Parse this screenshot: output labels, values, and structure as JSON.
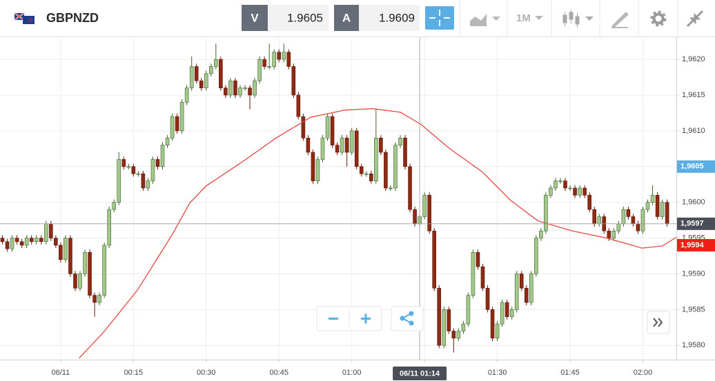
{
  "toolbar": {
    "symbol": "GBPNZD",
    "bid_label": "V",
    "bid": 1.9605,
    "ask_label": "A",
    "ask": 1.9609,
    "interval": "1M"
  },
  "chart_data": {
    "type": "candlestick",
    "up_color": "#a3c98a",
    "down_color": "#8e2a14",
    "x": [
      -12,
      -11,
      -10,
      -9,
      -8,
      -7,
      -6,
      -5,
      -4,
      -3,
      -2,
      -1,
      0,
      1,
      2,
      3,
      4,
      5,
      6,
      7,
      8,
      9,
      10,
      11,
      12,
      13,
      14,
      15,
      16,
      17,
      18,
      19,
      20,
      21,
      22,
      23,
      24,
      25,
      26,
      27,
      28,
      29,
      30,
      31,
      32,
      33,
      34,
      35,
      36,
      37,
      38,
      39,
      40,
      41,
      42,
      43,
      44,
      45,
      46,
      47,
      48,
      49,
      50,
      51,
      52,
      53,
      54,
      55,
      56,
      57,
      58,
      59,
      60,
      61,
      62,
      63,
      64,
      65,
      66,
      67,
      68,
      69,
      70,
      71,
      72,
      73,
      74,
      75,
      76,
      77,
      78,
      79,
      80,
      81,
      82,
      83,
      84,
      85,
      86,
      87,
      88,
      89,
      90,
      91,
      92,
      93,
      94,
      95,
      96,
      97,
      98,
      99,
      100,
      101,
      102,
      103,
      104,
      105,
      106,
      107,
      108,
      109,
      110,
      111,
      112,
      113,
      114,
      115,
      116,
      117,
      118,
      119,
      120,
      121,
      122,
      123,
      124,
      125
    ],
    "open": [
      1.9595,
      1.95945,
      1.95935,
      1.9595,
      1.95945,
      1.9594,
      1.9595,
      1.95945,
      1.9595,
      1.95945,
      1.9597,
      1.9595,
      1.9594,
      1.9592,
      1.9595,
      1.959,
      1.9588,
      1.959,
      1.9593,
      1.9587,
      1.9586,
      1.9587,
      1.9594,
      1.9599,
      1.96,
      1.9606,
      1.9605,
      1.9605,
      1.9604,
      1.9604,
      1.9602,
      1.9603,
      1.9606,
      1.9605,
      1.9608,
      1.9609,
      1.9612,
      1.961,
      1.9614,
      1.9616,
      1.9619,
      1.9617,
      1.9616,
      1.9618,
      1.9619,
      1.962,
      1.9616,
      1.9615,
      1.9617,
      1.9615,
      1.9616,
      1.9616,
      1.9615,
      1.9617,
      1.962,
      1.9619,
      1.9619,
      1.9621,
      1.962,
      1.9621,
      1.9619,
      1.9615,
      1.9612,
      1.9609,
      1.9607,
      1.9603,
      1.9606,
      1.9609,
      1.9612,
      1.9608,
      1.9607,
      1.9609,
      1.9607,
      1.961,
      1.9605,
      1.9604,
      1.9604,
      1.9603,
      1.9609,
      1.9607,
      1.9602,
      1.9602,
      1.9608,
      1.9609,
      1.9605,
      1.9599,
      1.9597,
      1.9598,
      1.9601,
      1.9596,
      1.9588,
      1.958,
      1.9585,
      1.9582,
      1.9581,
      1.9582,
      1.9583,
      1.9587,
      1.9593,
      1.9591,
      1.9588,
      1.9585,
      1.9581,
      1.9583,
      1.9586,
      1.9584,
      1.9585,
      1.959,
      1.9588,
      1.9586,
      1.959,
      1.9595,
      1.9596,
      1.9601,
      1.9602,
      1.9603,
      1.9603,
      1.9602,
      1.9602,
      1.9601,
      1.9602,
      1.9601,
      1.9599,
      1.9597,
      1.9598,
      1.9596,
      1.9595,
      1.9596,
      1.9597,
      1.9599,
      1.9598,
      1.9597,
      1.9596,
      1.9599,
      1.96,
      1.9601,
      1.9598,
      1.96
    ],
    "high": [
      1.95954,
      1.95949,
      1.95954,
      1.95954,
      1.95949,
      1.95954,
      1.95954,
      1.95954,
      1.95954,
      1.95974,
      1.95974,
      1.95954,
      1.95944,
      1.95954,
      1.95954,
      1.95904,
      1.95904,
      1.95934,
      1.95934,
      1.95874,
      1.95874,
      1.95944,
      1.95994,
      1.96004,
      1.9607,
      1.96064,
      1.96054,
      1.96054,
      1.96044,
      1.96044,
      1.96034,
      1.96064,
      1.96064,
      1.96084,
      1.96094,
      1.96124,
      1.96124,
      1.96144,
      1.96164,
      1.96204,
      1.96194,
      1.96174,
      1.96184,
      1.96194,
      1.96222,
      1.96204,
      1.96164,
      1.96174,
      1.96174,
      1.96164,
      1.96164,
      1.96164,
      1.96174,
      1.96204,
      1.96204,
      1.96222,
      1.96214,
      1.96214,
      1.96222,
      1.96214,
      1.96194,
      1.96154,
      1.96124,
      1.96094,
      1.96074,
      1.96064,
      1.96094,
      1.96124,
      1.96124,
      1.96084,
      1.96094,
      1.96094,
      1.96104,
      1.96104,
      1.96054,
      1.96044,
      1.96044,
      1.9613,
      1.96094,
      1.96074,
      1.96024,
      1.96084,
      1.96094,
      1.96094,
      1.96054,
      1.95994,
      1.95984,
      1.96014,
      1.96014,
      1.95964,
      1.95884,
      1.95854,
      1.95854,
      1.95824,
      1.95824,
      1.95834,
      1.95874,
      1.95934,
      1.95934,
      1.95914,
      1.95884,
      1.95854,
      1.95834,
      1.95864,
      1.95864,
      1.95854,
      1.95904,
      1.95904,
      1.95884,
      1.95904,
      1.95954,
      1.95964,
      1.96014,
      1.96024,
      1.96034,
      1.96034,
      1.96034,
      1.96024,
      1.96024,
      1.96024,
      1.96024,
      1.96014,
      1.95994,
      1.95984,
      1.95984,
      1.95964,
      1.95964,
      1.95974,
      1.95994,
      1.95994,
      1.95984,
      1.95974,
      1.95994,
      1.96004,
      1.96024,
      1.96014,
      1.96004,
      1.96004
    ],
    "low": [
      1.95941,
      1.95931,
      1.95931,
      1.95941,
      1.95936,
      1.95936,
      1.95941,
      1.95941,
      1.95941,
      1.95941,
      1.95946,
      1.95936,
      1.95916,
      1.95916,
      1.95896,
      1.95876,
      1.95876,
      1.95896,
      1.95866,
      1.9584,
      1.95856,
      1.95866,
      1.95936,
      1.95986,
      1.95996,
      1.96046,
      1.96046,
      1.96036,
      1.96036,
      1.96016,
      1.96016,
      1.96026,
      1.96046,
      1.96046,
      1.96076,
      1.96086,
      1.96096,
      1.96096,
      1.96136,
      1.96156,
      1.96166,
      1.96156,
      1.96156,
      1.96176,
      1.96186,
      1.96156,
      1.96146,
      1.96146,
      1.96146,
      1.96146,
      1.96156,
      1.9613,
      1.96146,
      1.96166,
      1.96186,
      1.96186,
      1.96186,
      1.96196,
      1.96196,
      1.96186,
      1.96146,
      1.96116,
      1.96086,
      1.96066,
      1.96026,
      1.96026,
      1.96056,
      1.96086,
      1.96076,
      1.96066,
      1.96066,
      1.9605,
      1.96066,
      1.96046,
      1.96036,
      1.96036,
      1.96026,
      1.96026,
      1.96066,
      1.96016,
      1.96016,
      1.96016,
      1.96076,
      1.96046,
      1.95986,
      1.95966,
      1.95966,
      1.95976,
      1.95956,
      1.95876,
      1.95796,
      1.95796,
      1.95816,
      1.9579,
      1.95806,
      1.95816,
      1.95826,
      1.95866,
      1.95906,
      1.95876,
      1.95846,
      1.95806,
      1.95806,
      1.95826,
      1.95836,
      1.95836,
      1.95846,
      1.95876,
      1.95856,
      1.95856,
      1.95896,
      1.95946,
      1.95956,
      1.96006,
      1.96016,
      1.96026,
      1.96016,
      1.96016,
      1.96006,
      1.96006,
      1.96006,
      1.95986,
      1.95966,
      1.95966,
      1.95956,
      1.95946,
      1.95946,
      1.95956,
      1.95966,
      1.95976,
      1.95966,
      1.95956,
      1.95956,
      1.95986,
      1.95996,
      1.95976,
      1.95976,
      1.95966
    ],
    "close": [
      1.95945,
      1.95935,
      1.9595,
      1.95945,
      1.9594,
      1.9595,
      1.95945,
      1.9595,
      1.95945,
      1.9597,
      1.9595,
      1.9594,
      1.9592,
      1.9595,
      1.959,
      1.9588,
      1.959,
      1.9593,
      1.9587,
      1.9586,
      1.9587,
      1.9594,
      1.9599,
      1.96,
      1.9606,
      1.9605,
      1.9605,
      1.9604,
      1.9604,
      1.9602,
      1.9603,
      1.9606,
      1.9605,
      1.9608,
      1.9609,
      1.9612,
      1.961,
      1.9614,
      1.9616,
      1.9619,
      1.9617,
      1.9616,
      1.9618,
      1.9619,
      1.962,
      1.9616,
      1.9615,
      1.9617,
      1.9615,
      1.9616,
      1.9616,
      1.9615,
      1.9617,
      1.962,
      1.9619,
      1.9619,
      1.9621,
      1.962,
      1.9621,
      1.9619,
      1.9615,
      1.9612,
      1.9609,
      1.9607,
      1.9603,
      1.9606,
      1.9609,
      1.9612,
      1.9608,
      1.9607,
      1.9609,
      1.9607,
      1.961,
      1.9605,
      1.9604,
      1.9604,
      1.9603,
      1.9609,
      1.9607,
      1.9602,
      1.9602,
      1.9608,
      1.9609,
      1.9605,
      1.9599,
      1.9597,
      1.9598,
      1.9601,
      1.9596,
      1.9588,
      1.958,
      1.9585,
      1.9582,
      1.9581,
      1.9582,
      1.9583,
      1.9587,
      1.9593,
      1.9591,
      1.9588,
      1.9585,
      1.9581,
      1.9583,
      1.9586,
      1.9584,
      1.9585,
      1.959,
      1.9588,
      1.9586,
      1.959,
      1.9595,
      1.9596,
      1.9601,
      1.9602,
      1.9603,
      1.9603,
      1.9602,
      1.9602,
      1.9601,
      1.9602,
      1.9601,
      1.9599,
      1.9597,
      1.9598,
      1.9596,
      1.9595,
      1.9596,
      1.9597,
      1.9599,
      1.9598,
      1.9597,
      1.9596,
      1.9599,
      1.96,
      1.9601,
      1.9598,
      1.96,
      1.9597
    ],
    "moving_average": {
      "color": "#e8453c",
      "x": [
        3.8,
        8.8,
        15.9,
        23,
        26.6,
        30,
        37.3,
        44.4,
        51.5,
        58.6,
        64.3,
        70,
        74.3,
        80,
        87,
        92.7,
        98.4,
        105.5,
        112.6,
        119.8,
        124,
        126.9
      ],
      "values": [
        1.95782,
        1.95818,
        1.95878,
        1.95955,
        1.95999,
        1.96023,
        1.96056,
        1.9609,
        1.96119,
        1.96129,
        1.96131,
        1.96126,
        1.96109,
        1.96076,
        1.96042,
        1.96003,
        1.95974,
        1.9596,
        1.9595,
        1.95936,
        1.95939,
        1.95951
      ]
    },
    "xlim": [
      -12.5,
      126.9
    ],
    "xticks": [
      {
        "value": 0,
        "label": "06/11"
      },
      {
        "value": 15,
        "label": "00:15"
      },
      {
        "value": 30,
        "label": "00:30"
      },
      {
        "value": 45,
        "label": "00:45"
      },
      {
        "value": 60,
        "label": "01:00"
      },
      {
        "value": 75,
        "label": "01:15"
      },
      {
        "value": 90,
        "label": "01:30"
      },
      {
        "value": 105,
        "label": "01:45"
      },
      {
        "value": 120,
        "label": "02:00"
      }
    ],
    "ylim": [
      1.9578,
      1.9623
    ],
    "yticks": [
      {
        "value": 1.958,
        "label": "1,9580"
      },
      {
        "value": 1.9585,
        "label": "1,9585"
      },
      {
        "value": 1.959,
        "label": "1,9590"
      },
      {
        "value": 1.9595,
        "label": "1,9595"
      },
      {
        "value": 1.96,
        "label": "1,9600"
      },
      {
        "value": 1.9605,
        "label": "1,9605"
      },
      {
        "value": 1.961,
        "label": "1,9610"
      },
      {
        "value": 1.9615,
        "label": "1,9615"
      },
      {
        "value": 1.962,
        "label": "1,9620"
      }
    ],
    "grid": true,
    "price_labels": [
      {
        "value": 1.9605,
        "label": "1,9605",
        "color": "#5aaee3"
      },
      {
        "value": 1.9597,
        "label": "1,9597",
        "color": "#4a4f57"
      },
      {
        "value": 1.9594,
        "label": "1,9594",
        "color": "#f21d14"
      }
    ],
    "crosshair": {
      "x": 74,
      "y": 1.9597,
      "label": "06/11 01:14"
    }
  }
}
